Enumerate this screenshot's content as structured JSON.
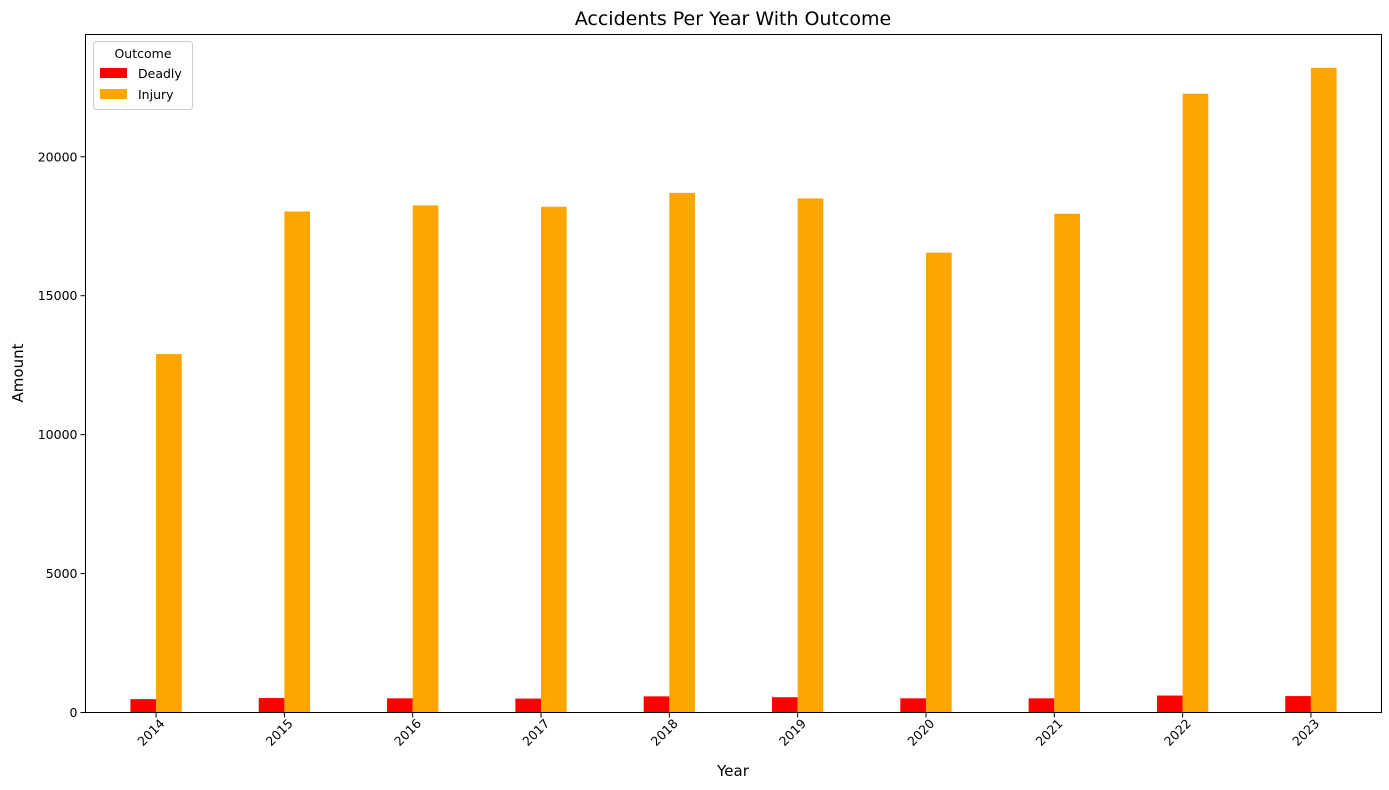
{
  "chart_data": {
    "type": "bar",
    "title": "Accidents Per Year With Outcome",
    "xlabel": "Year",
    "ylabel": "Amount",
    "categories": [
      "2014",
      "2015",
      "2016",
      "2017",
      "2018",
      "2019",
      "2020",
      "2021",
      "2022",
      "2023"
    ],
    "series": [
      {
        "name": "Deadly",
        "color": "#ff0000",
        "values": [
          480,
          520,
          510,
          500,
          580,
          550,
          510,
          510,
          610,
          590
        ]
      },
      {
        "name": "Injury",
        "color": "#ffa500",
        "values": [
          12900,
          18030,
          18250,
          18200,
          18700,
          18500,
          16550,
          17950,
          22270,
          23200
        ]
      }
    ],
    "ylim": [
      0,
      24400
    ],
    "yticks": [
      0,
      5000,
      10000,
      15000,
      20000
    ],
    "grid": false,
    "legend": {
      "title": "Outcome",
      "position": "top-left"
    },
    "xtick_rotation": 45
  }
}
